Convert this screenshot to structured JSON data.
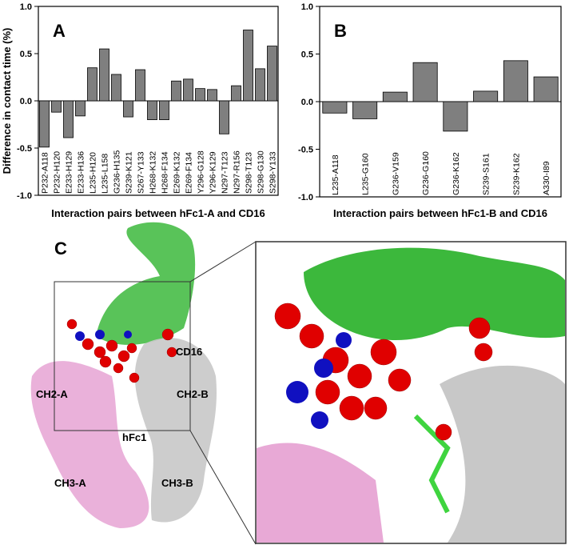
{
  "chart_data": [
    {
      "type": "bar",
      "label": "A",
      "ylabel": "Difference in contact time (%)",
      "xlabel": "Interaction pairs between hFc1-A and CD16",
      "categories": [
        "P232-A118",
        "P232-H120",
        "E233-H129",
        "E233-H136",
        "L235-H120",
        "L235-L158",
        "G236-H135",
        "S239-K121",
        "S267-Y133",
        "H268-K132",
        "H268-F134",
        "E269-K132",
        "E269-F134",
        "Y296-G128",
        "Y296-K129",
        "N297-T123",
        "N297-R156",
        "S298-T123",
        "S298-G130",
        "S298-Y133"
      ],
      "values": [
        -0.49,
        -0.12,
        -0.39,
        -0.16,
        0.35,
        0.55,
        0.28,
        -0.17,
        0.33,
        -0.2,
        -0.2,
        0.21,
        0.23,
        0.13,
        0.12,
        -0.35,
        0.16,
        0.75,
        0.34,
        0.58
      ],
      "color": "#7f7f7f",
      "ylim": [
        -1,
        1
      ],
      "yticks": [
        {
          "value": -1,
          "label": "-1.0"
        },
        -0.5,
        {
          "value": 0,
          "label": "0.0"
        },
        0.5,
        {
          "value": 1,
          "label": "1.0"
        }
      ]
    },
    {
      "type": "bar",
      "label": "B",
      "xlabel": "Interaction pairs between hFc1-B and CD16",
      "categories": [
        "L235-A118",
        "L235-G160",
        "G236-V159",
        "G236-G160",
        "G236-K162",
        "S239-S161",
        "S239-K162",
        "A330-I89"
      ],
      "values": [
        -0.12,
        -0.18,
        0.1,
        0.41,
        -0.31,
        0.11,
        0.43,
        0.26
      ],
      "color": "#7f7f7f",
      "ylim": [
        -1,
        1
      ],
      "yticks": [
        {
          "value": -1,
          "label": "-1.0"
        },
        -0.5,
        {
          "value": 0,
          "label": "0.0"
        },
        0.5,
        {
          "value": 1,
          "label": "1.0"
        }
      ]
    }
  ],
  "structure_panel": {
    "label": "C",
    "annotations": [
      "CD16",
      "CH2-A",
      "CH2-B",
      "hFc1",
      "CH3-A",
      "CH3-B"
    ]
  }
}
